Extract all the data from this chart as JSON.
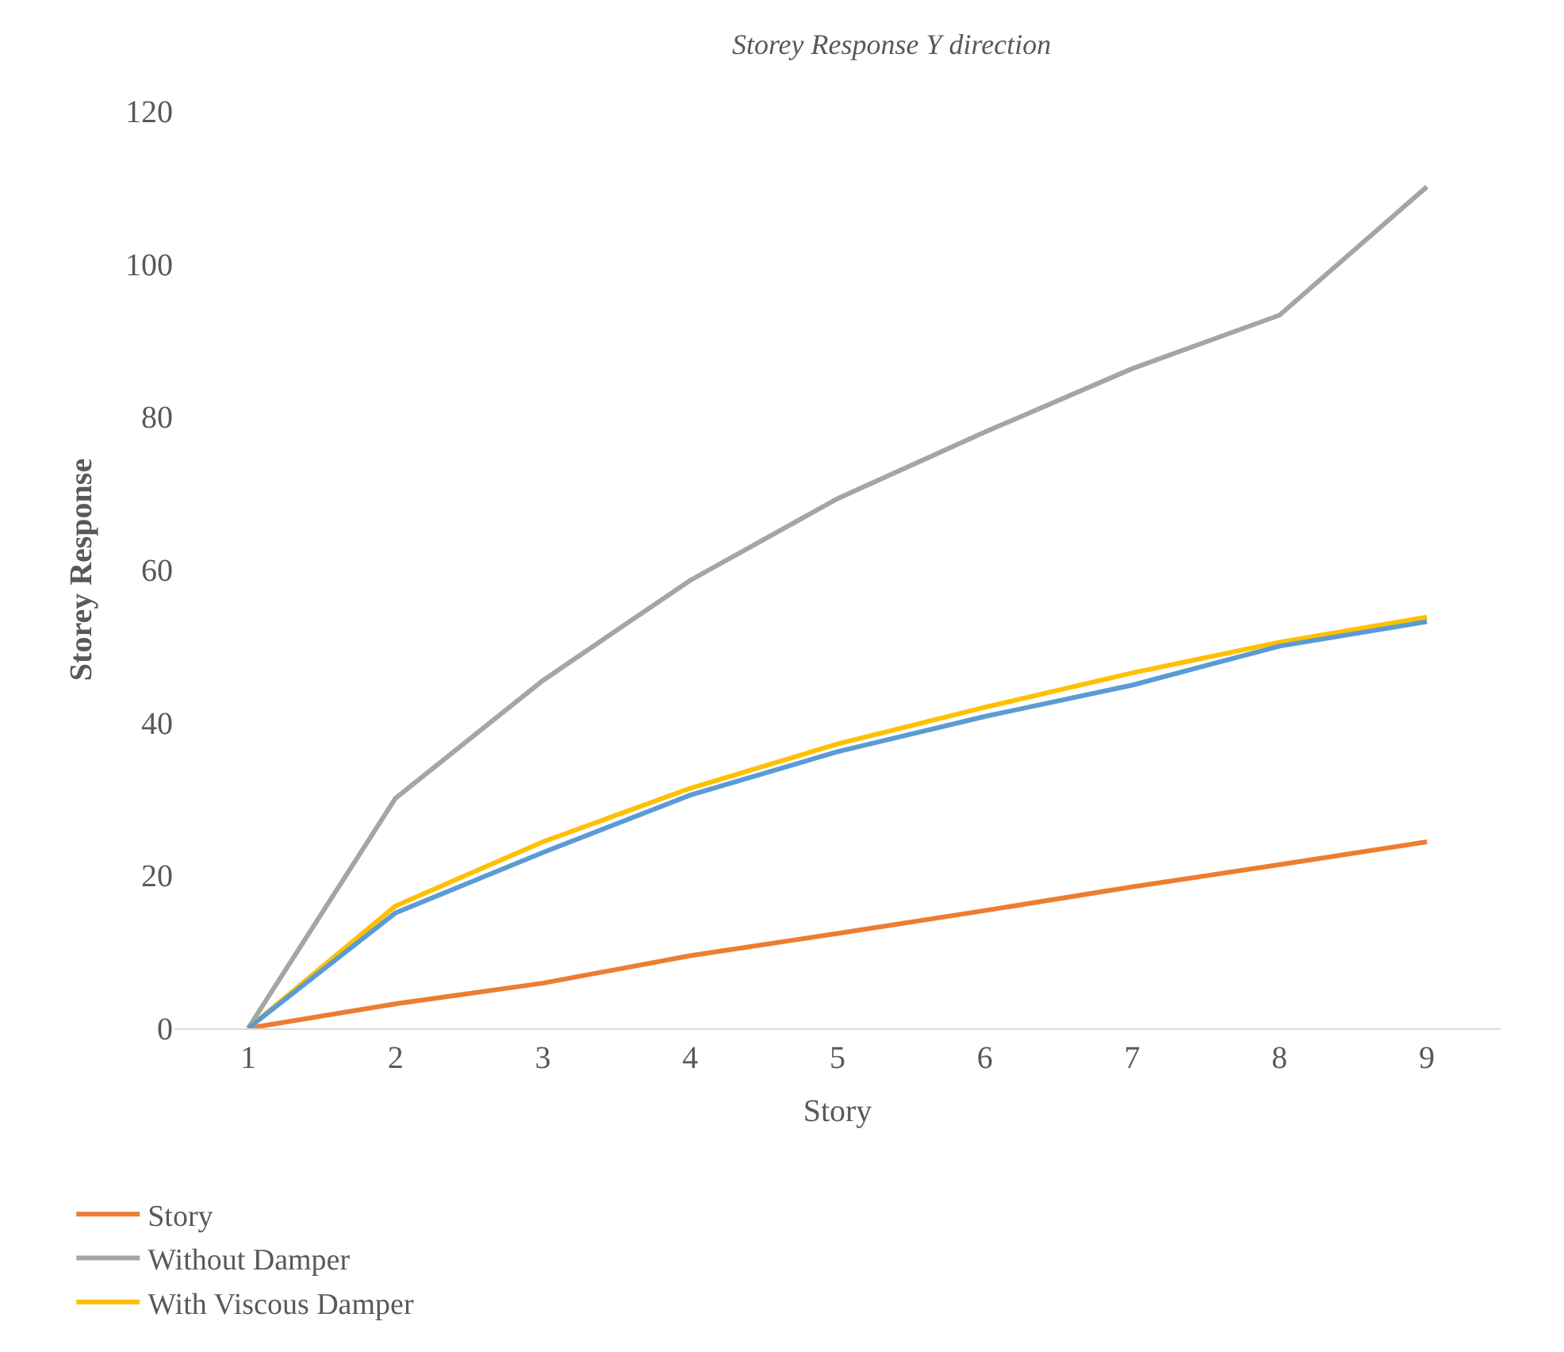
{
  "chart_data": {
    "type": "line",
    "title": "Storey Response Y direction",
    "xlabel": "Story",
    "ylabel": "Storey Response",
    "categories": [
      "1",
      "2",
      "3",
      "4",
      "5",
      "6",
      "7",
      "8",
      "9"
    ],
    "series": [
      {
        "name": "Story",
        "color": "#ed7d31",
        "values": [
          0,
          3.2,
          5.9,
          9.5,
          12.4,
          15.4,
          18.5,
          21.4,
          24.4
        ]
      },
      {
        "name": "Without Damper",
        "color": "#a5a5a5",
        "values": [
          0,
          30.1,
          45.5,
          58.6,
          69.3,
          78.0,
          86.3,
          93.3,
          110.1
        ]
      },
      {
        "name": "With Viscous Damper",
        "color": "#ffc000",
        "values": [
          0,
          16.0,
          24.4,
          31.4,
          37.2,
          42.0,
          46.5,
          50.5,
          53.8
        ]
      },
      {
        "color": "#5b9bd5",
        "values": [
          0,
          15.1,
          23.0,
          30.5,
          36.2,
          40.8,
          44.9,
          50.0,
          53.2
        ]
      }
    ],
    "ylim": [
      0,
      120
    ],
    "yticks": [
      0,
      20,
      40,
      60,
      80,
      100,
      120
    ],
    "legend": "bottom left",
    "marker": "none",
    "line_style": "solid"
  }
}
